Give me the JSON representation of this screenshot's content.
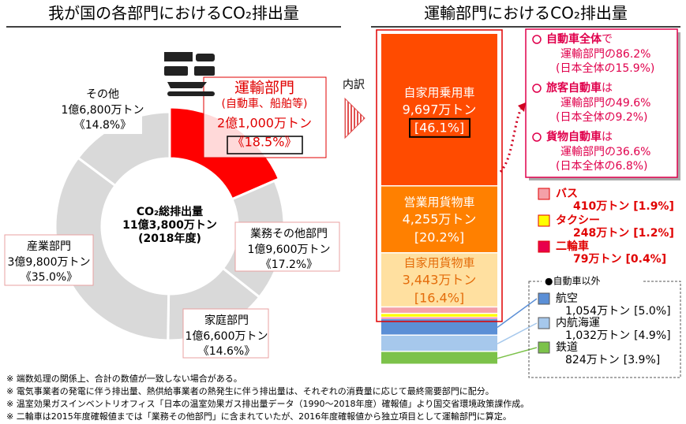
{
  "chart_data": [
    {
      "type": "pie",
      "title": "我が国の各部門におけるCO₂排出量",
      "center_label": [
        "CO₂総排出量",
        "11億3,800万トン",
        "(2018年度)"
      ],
      "categories": [
        "運輸部門",
        "業務その他部門",
        "家庭部門",
        "産業部門",
        "その他"
      ],
      "transport_note": "(自動車、船舶等)",
      "amount_labels": [
        "2億1,000万トン",
        "1億9,600万トン",
        "1億6,600万トン",
        "3億9,800万トン",
        "1億6,800万トン"
      ],
      "values": [
        18.5,
        17.2,
        14.6,
        35.0,
        14.8
      ],
      "value_labels": [
        "《18.5%》",
        "《17.2%》",
        "《14.6%》",
        "《35.0%》",
        "《14.8%》"
      ],
      "colors": [
        "#ff0000",
        "#d9d9d9",
        "#d9d9d9",
        "#d9d9d9",
        "#d9d9d9"
      ]
    },
    {
      "type": "stacked_bar",
      "title": "運輸部門におけるCO₂排出量",
      "breakdown_label": "内訳",
      "categories": [
        "自家用乗用車",
        "営業用貨物車",
        "自家用貨物車",
        "バス",
        "タクシー",
        "二輪車",
        "航空",
        "内航海運",
        "鉄道"
      ],
      "values": [
        9697,
        4255,
        3443,
        410,
        248,
        79,
        1054,
        1032,
        824
      ],
      "value_labels": [
        "9,697万トン",
        "4,255万トン",
        "3,443万トン",
        "410万トン",
        "248万トン",
        "79万トン",
        "1,054万トン",
        "1,032万トン",
        "824万トン"
      ],
      "percent_labels": [
        "[46.1%]",
        "[20.2%]",
        "[16.4%]",
        "[1.9%]",
        "[1.2%]",
        "[0.4%]",
        "[5.0%]",
        "[4.9%]",
        "[3.9%]"
      ],
      "colors": [
        "#ff4b00",
        "#ff8000",
        "#ffe0a0",
        "#f4a0a8",
        "#ffff00",
        "#e8004c",
        "#5b8fd6",
        "#a6c8ec",
        "#7cc24a"
      ],
      "other_group_label": "●自動車以外",
      "callout": [
        {
          "head": "自動車全体",
          "tail": "で",
          "lines": [
            "運輸部門の86.2%",
            "(日本全体の15.9%)"
          ]
        },
        {
          "head": "旅客自動車",
          "tail": "は",
          "lines": [
            "運輸部門の49.6%",
            "(日本全体の9.2%)"
          ]
        },
        {
          "head": "貨物自動車",
          "tail": "は",
          "lines": [
            "運輸部門の36.6%",
            "(日本全体の6.8%)"
          ]
        }
      ]
    }
  ],
  "footnotes": [
    "※ 端数処理の関係上、合計の数値が一致しない場合がある。",
    "※ 電気事業者の発電に伴う排出量、熱供給事業者の熱発生に伴う排出量は、それぞれの消費量に応じて最終需要部門に配分。",
    "※ 温室効果ガスインベントリオフィス「日本の温室効果ガス排出量データ（1990～2018年度）確報値」より国交省環境政策課作成。",
    "※ 二輪車は2015年度確報値までは「業務その他部門」に含まれていたが、2016年度確報値から独立項目として運輸部門に算定。"
  ]
}
